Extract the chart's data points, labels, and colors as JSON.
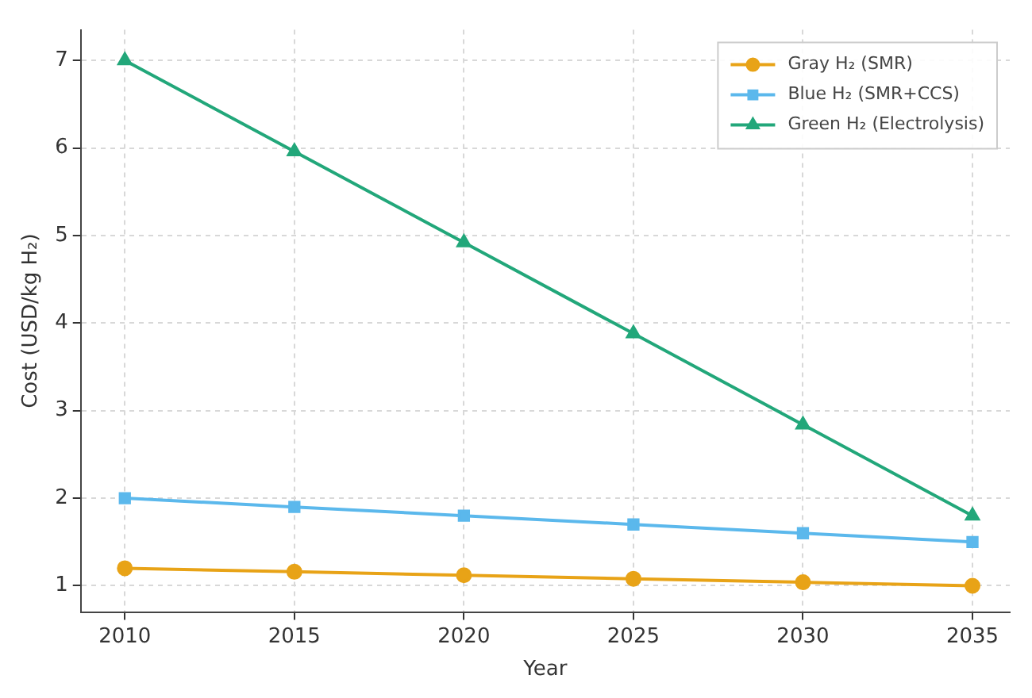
{
  "chart_data": {
    "type": "line",
    "xlabel": "Year",
    "ylabel": "Cost (USD/kg H₂)",
    "x": [
      2010,
      2015,
      2020,
      2025,
      2030,
      2035
    ],
    "series": [
      {
        "name": "Gray H₂ (SMR)",
        "color": "#e8a317",
        "values": [
          1.2,
          1.16,
          1.12,
          1.08,
          1.04,
          1.0
        ],
        "marker": "circle"
      },
      {
        "name": "Blue H₂ (SMR+CCS)",
        "color": "#5bb8ec",
        "values": [
          2.0,
          1.9,
          1.8,
          1.7,
          1.6,
          1.5
        ],
        "marker": "square"
      },
      {
        "name": "Green H₂ (Electrolysis)",
        "color": "#22a77a",
        "values": [
          7.0,
          5.96,
          4.92,
          3.88,
          2.84,
          1.8
        ],
        "marker": "triangle"
      }
    ],
    "xlim": [
      2008.7,
      2036.1
    ],
    "xticks": [
      2010,
      2015,
      2020,
      2025,
      2030,
      2035
    ],
    "ylim": [
      0.7,
      7.35
    ],
    "yticks": [
      1,
      2,
      3,
      4,
      5,
      6,
      7
    ],
    "grid": true,
    "legend": "top right",
    "line_style": "solid"
  }
}
